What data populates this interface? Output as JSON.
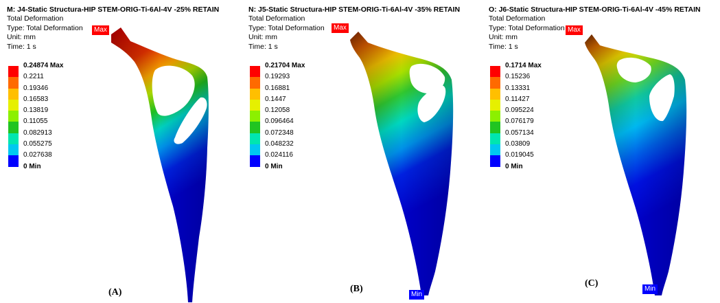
{
  "panels": [
    {
      "title": "M: J4-Static Structura-HIP  STEM-ORIG-Ti-6Al-4V -25% RETAIN",
      "subtitle": "Total Deformation",
      "type": "Type: Total Deformation",
      "unit": "Unit: mm",
      "time": "Time: 1 s",
      "legend": [
        "0.24874 Max",
        "0.2211",
        "0.19346",
        "0.16583",
        "0.13819",
        "0.11055",
        "0.082913",
        "0.055275",
        "0.027638",
        "0 Min"
      ],
      "max_tag": "Max",
      "caption": "(A)"
    },
    {
      "title": "N: J5-Static Structura-HIP  STEM-ORIG-Ti-6Al-4V -35% RETAIN",
      "subtitle": "Total Deformation",
      "type": "Type: Total Deformation",
      "unit": "Unit: mm",
      "time": "Time: 1 s",
      "legend": [
        "0.21704 Max",
        "0.19293",
        "0.16881",
        "0.1447",
        "0.12058",
        "0.096464",
        "0.072348",
        "0.048232",
        "0.024116",
        "0 Min"
      ],
      "max_tag": "Max",
      "min_tag": "Min",
      "caption": "(B)"
    },
    {
      "title": "O: J6-Static Structura-HIP  STEM-ORIG-Ti-6Al-4V -45% RETAIN",
      "subtitle": "Total Deformation",
      "type": "Type: Total Deformation",
      "unit": "Unit: mm",
      "time": "Time: 1 s",
      "legend": [
        "0.1714 Max",
        "0.15236",
        "0.13331",
        "0.11427",
        "0.095224",
        "0.076179",
        "0.057134",
        "0.03809",
        "0.019045",
        "0 Min"
      ],
      "max_tag": "Max",
      "min_tag": "Min",
      "caption": "(C)"
    }
  ],
  "colors": {
    "scale": [
      "#ff0000",
      "#ff6a00",
      "#ffbf00",
      "#e6f000",
      "#8cf000",
      "#21c421",
      "#00e6b0",
      "#00c8f0",
      "#0080f0",
      "#0000ff"
    ],
    "max": "#ff0000",
    "min": "#0000ff"
  }
}
